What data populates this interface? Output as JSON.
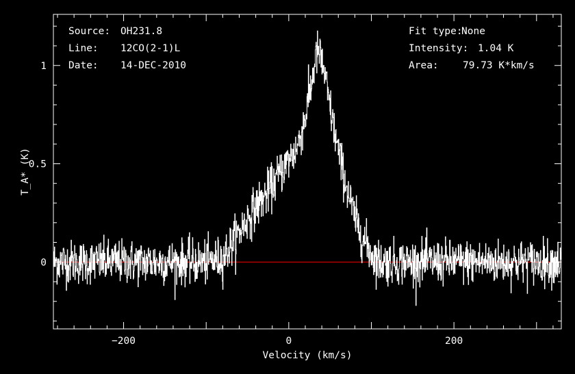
{
  "info_left": [
    {
      "key": "Source:",
      "value": "OH231.8"
    },
    {
      "key": "Line:",
      "value": "12CO(2-1)L"
    },
    {
      "key": "Date:",
      "value": "14-DEC-2010"
    }
  ],
  "info_right": [
    {
      "key": "Fit type:",
      "value": "None"
    },
    {
      "key": "Intensity:",
      "value": "1.04 K"
    },
    {
      "key": "Area:",
      "value": "79.73 K*km/s"
    }
  ],
  "colors": {
    "background": "#000000",
    "foreground": "#ffffff",
    "zero_line": "#ff0000"
  },
  "chart_data": {
    "type": "line",
    "xlabel": "Velocity (km/s)",
    "ylabel": "T_A* (K)",
    "xlim": [
      -285,
      330
    ],
    "ylim": [
      -0.34,
      1.26
    ],
    "x_ticks": [
      {
        "value": -200,
        "label": "−200"
      },
      {
        "value": 0,
        "label": "0"
      },
      {
        "value": 200,
        "label": "200"
      }
    ],
    "y_ticks": [
      {
        "value": 0,
        "label": "0"
      },
      {
        "value": 0.5,
        "label": "0.5"
      },
      {
        "value": 1,
        "label": "1"
      }
    ],
    "zero_line": 0,
    "profile": {
      "x": [
        -285,
        -100,
        -80,
        -65,
        -50,
        -40,
        -30,
        -20,
        -10,
        0,
        10,
        20,
        28,
        32,
        36,
        42,
        50,
        60,
        70,
        80,
        90,
        100,
        110,
        330
      ],
      "y": [
        0,
        0,
        0.02,
        0.12,
        0.22,
        0.28,
        0.33,
        0.39,
        0.46,
        0.52,
        0.58,
        0.74,
        0.92,
        1.04,
        1.07,
        0.98,
        0.78,
        0.56,
        0.38,
        0.22,
        0.12,
        0.04,
        0,
        0
      ]
    },
    "noise_rms": 0.055,
    "channel_width_kms": 0.42
  }
}
